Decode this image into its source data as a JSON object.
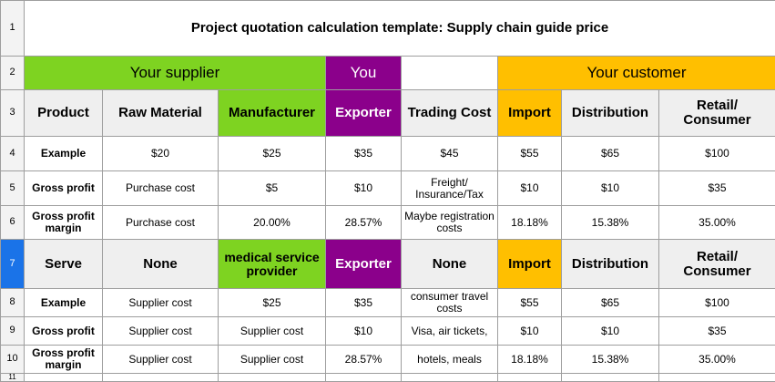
{
  "row_numbers": [
    "1",
    "2",
    "3",
    "4",
    "5",
    "6",
    "7",
    "8",
    "9",
    "10",
    "11"
  ],
  "selected_row": "7",
  "title": "Project quotation calculation template: Supply chain guide price",
  "bands": {
    "supplier": "Your supplier",
    "you": "You",
    "customer": "Your customer"
  },
  "headers": [
    "Product",
    "Raw Material",
    "Manufacturer",
    "Exporter",
    "Trading Cost",
    "Import",
    "Distribution",
    "Retail/ Consumer"
  ],
  "rows": [
    [
      "Example",
      "$20",
      "$25",
      "$35",
      "$45",
      "$55",
      "$65",
      "$100"
    ],
    [
      "Gross profit",
      "Purchase cost",
      "$5",
      "$10",
      "Freight/ Insurance/Tax",
      "$10",
      "$10",
      "$35"
    ],
    [
      "Gross profit margin",
      "Purchase cost",
      "20.00%",
      "28.57%",
      "Maybe registration costs",
      "18.18%",
      "15.38%",
      "35.00%"
    ]
  ],
  "serve_header": [
    "Serve",
    "None",
    "medical service provider",
    "Exporter",
    "None",
    "Import",
    "Distribution",
    "Retail/ Consumer"
  ],
  "rows2": [
    [
      "Example",
      "Supplier cost",
      "$25",
      "$35",
      "consumer travel costs",
      "$55",
      "$65",
      "$100"
    ],
    [
      "Gross profit",
      "Supplier cost",
      "Supplier cost",
      "$10",
      "Visa, air tickets,",
      "$10",
      "$10",
      "$35"
    ],
    [
      "Gross profit margin",
      "Supplier cost",
      "Supplier cost",
      "28.57%",
      "hotels, meals",
      "18.18%",
      "15.38%",
      "35.00%"
    ]
  ],
  "colors": {
    "green": "#7ed321",
    "purple": "#8b008b",
    "orange": "#ffbf00",
    "header_grey": "#efefef",
    "selected_row": "#1a73e8"
  }
}
